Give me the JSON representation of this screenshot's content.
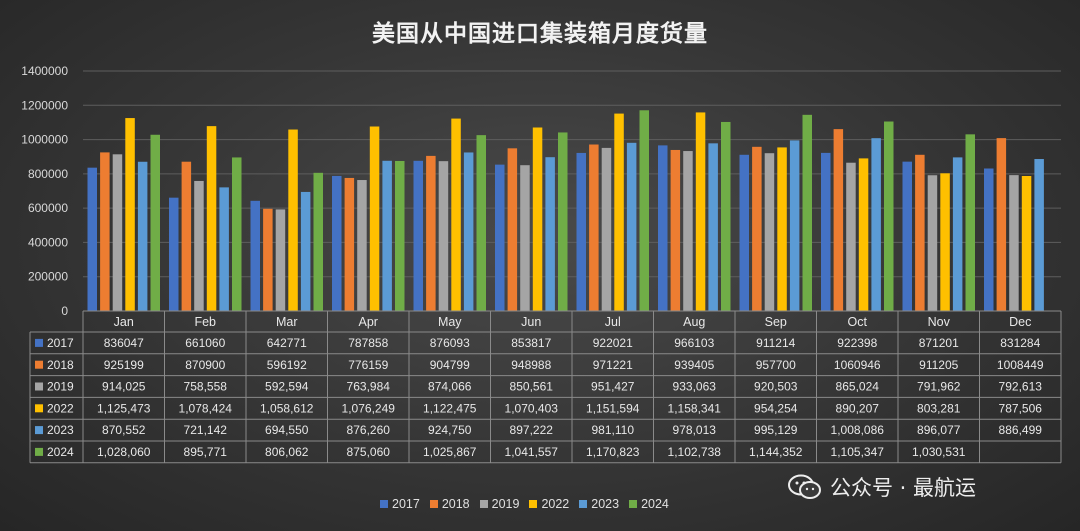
{
  "chart_data": {
    "type": "bar",
    "title": "美国从中国进口集装箱月度货量",
    "categories": [
      "Jan",
      "Feb",
      "Mar",
      "Apr",
      "May",
      "Jun",
      "Jul",
      "Aug",
      "Sep",
      "Oct",
      "Nov",
      "Dec"
    ],
    "ylim": [
      0,
      1400000
    ],
    "yticks": [
      "0",
      "200000",
      "400000",
      "600000",
      "800000",
      "1000000",
      "1200000",
      "1400000"
    ],
    "grid": true,
    "legend_position": "bottom",
    "series": [
      {
        "name": "2017",
        "color": "#4472C4",
        "values": [
          836047,
          661060,
          642771,
          787858,
          876093,
          853817,
          922021,
          966103,
          911214,
          922398,
          871201,
          831284
        ],
        "labels": [
          "836047",
          "661060",
          "642771",
          "787858",
          "876093",
          "853817",
          "922021",
          "966103",
          "911214",
          "922398",
          "871201",
          "831284"
        ]
      },
      {
        "name": "2018",
        "color": "#ED7D31",
        "values": [
          925199,
          870900,
          596192,
          776159,
          904799,
          948988,
          971221,
          939405,
          957700,
          1060946,
          911205,
          1008449
        ],
        "labels": [
          "925199",
          "870900",
          "596192",
          "776159",
          "904799",
          "948988",
          "971221",
          "939405",
          "957700",
          "1060946",
          "911205",
          "1008449"
        ]
      },
      {
        "name": "2019",
        "color": "#A5A5A5",
        "values": [
          914025,
          758558,
          592594,
          763984,
          874066,
          850561,
          951427,
          933063,
          920503,
          865024,
          791962,
          792613
        ],
        "labels": [
          "914,025",
          "758,558",
          "592,594",
          "763,984",
          "874,066",
          "850,561",
          "951,427",
          "933,063",
          "920,503",
          "865,024",
          "791,962",
          "792,613"
        ]
      },
      {
        "name": "2022",
        "color": "#FFC000",
        "values": [
          1125473,
          1078424,
          1058612,
          1076249,
          1122475,
          1070403,
          1151594,
          1158341,
          954254,
          890207,
          803281,
          787506
        ],
        "labels": [
          "1,125,473",
          "1,078,424",
          "1,058,612",
          "1,076,249",
          "1,122,475",
          "1,070,403",
          "1,151,594",
          "1,158,341",
          "954,254",
          "890,207",
          "803,281",
          "787,506"
        ]
      },
      {
        "name": "2023",
        "color": "#5B9BD5",
        "values": [
          870552,
          721142,
          694550,
          876260,
          924750,
          897222,
          981110,
          978013,
          995129,
          1008086,
          896077,
          886499
        ],
        "labels": [
          "870,552",
          "721,142",
          "694,550",
          "876,260",
          "924,750",
          "897,222",
          "981,110",
          "978,013",
          "995,129",
          "1,008,086",
          "896,077",
          "886,499"
        ]
      },
      {
        "name": "2024",
        "color": "#70AD47",
        "values": [
          1028060,
          895771,
          806062,
          875060,
          1025867,
          1041557,
          1170823,
          1102738,
          1144352,
          1105347,
          1030531,
          null
        ],
        "labels": [
          "1,028,060",
          "895,771",
          "806,062",
          "875,060",
          "1,025,867",
          "1,041,557",
          "1,170,823",
          "1,102,738",
          "1,144,352",
          "1,105,347",
          "1,030,531",
          ""
        ]
      }
    ]
  },
  "watermark": {
    "text": "公众号 · 最航运",
    "icon": "wechat-icon"
  }
}
